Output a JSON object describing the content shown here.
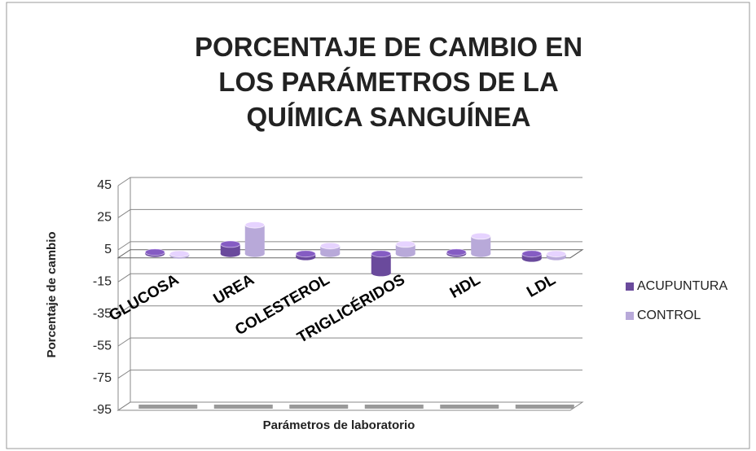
{
  "chart_data": {
    "type": "bar3d",
    "title": "PORCENTAJE DE CAMBIO EN LOS PARÁMETROS DE LA QUÍMICA SANGUÍNEA",
    "x_label": "Parámetros de laboratorio",
    "y_label": "Porcentaje de cambio",
    "categories": [
      "GLUCOSA",
      "UREA",
      "COLESTEROL",
      "TRIGLICÉRIDOS",
      "HDL",
      "LDL"
    ],
    "series": [
      {
        "name": "ACUPUNTURA",
        "color": "#6a4a9c",
        "values": [
          1,
          6,
          -2,
          -12,
          1,
          -3
        ]
      },
      {
        "name": "CONTROL",
        "color": "#b8a9d9",
        "values": [
          -1,
          18,
          5,
          6,
          11,
          -2
        ]
      }
    ],
    "ylim": [
      -95,
      45
    ],
    "yticks": [
      -95,
      -75,
      -55,
      -35,
      -15,
      5,
      25,
      45
    ],
    "grid": true,
    "legend": "right"
  }
}
